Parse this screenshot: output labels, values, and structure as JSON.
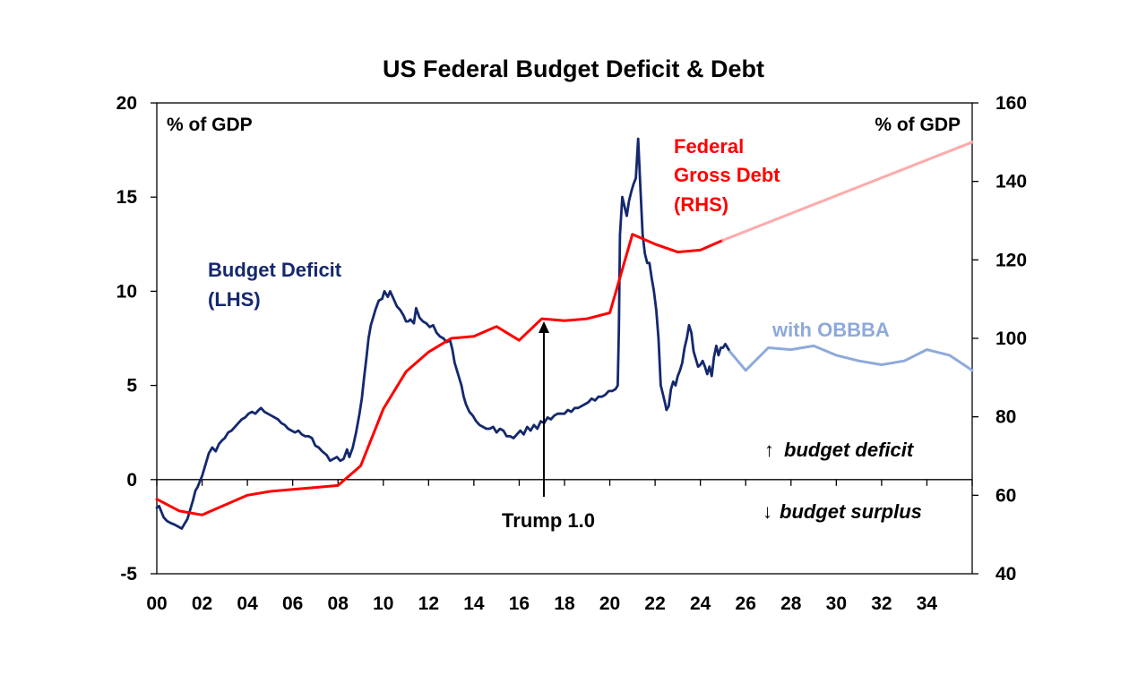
{
  "chart_data": {
    "type": "line",
    "title": "US Federal Budget Deficit & Debt",
    "y_left_label": "% of GDP",
    "y_right_label": "% of GDP",
    "y_left": {
      "min": -5,
      "max": 20,
      "ticks": [
        -5,
        0,
        5,
        10,
        15,
        20
      ]
    },
    "y_right": {
      "min": 40,
      "max": 160,
      "ticks": [
        40,
        60,
        80,
        100,
        120,
        140,
        160
      ]
    },
    "x": {
      "min": 0,
      "max": 36,
      "tick_values": [
        0,
        2,
        4,
        6,
        8,
        10,
        12,
        14,
        16,
        18,
        20,
        22,
        24,
        26,
        28,
        30,
        32,
        34
      ],
      "tick_labels": [
        "00",
        "02",
        "04",
        "06",
        "08",
        "10",
        "12",
        "14",
        "16",
        "18",
        "20",
        "22",
        "24",
        "26",
        "28",
        "30",
        "32",
        "34"
      ],
      "minor_ticks": [
        0,
        2,
        4,
        6,
        8,
        10,
        12,
        14,
        16,
        18,
        20,
        22,
        24,
        26,
        28,
        30,
        32,
        34,
        36
      ]
    },
    "series": [
      {
        "name": "Budget Deficit (LHS)",
        "axis": "left",
        "color": "#14286E",
        "points": [
          [
            0,
            -1.5
          ],
          [
            0.1,
            -1.4
          ],
          [
            0.2,
            -1.7
          ],
          [
            0.3,
            -2
          ],
          [
            0.45,
            -2.2
          ],
          [
            0.6,
            -2.3
          ],
          [
            0.8,
            -2.4
          ],
          [
            0.95,
            -2.5
          ],
          [
            1.1,
            -2.6
          ],
          [
            1.2,
            -2.4
          ],
          [
            1.35,
            -2.1
          ],
          [
            1.5,
            -1.5
          ],
          [
            1.6,
            -1.1
          ],
          [
            1.7,
            -0.6
          ],
          [
            1.8,
            -0.4
          ],
          [
            1.9,
            -0.1
          ],
          [
            2.0,
            0.2
          ],
          [
            2.1,
            0.6
          ],
          [
            2.2,
            1.0
          ],
          [
            2.3,
            1.4
          ],
          [
            2.45,
            1.7
          ],
          [
            2.6,
            1.5
          ],
          [
            2.75,
            1.9
          ],
          [
            2.9,
            2.1
          ],
          [
            3.0,
            2.2
          ],
          [
            3.15,
            2.5
          ],
          [
            3.3,
            2.6
          ],
          [
            3.45,
            2.8
          ],
          [
            3.6,
            3.0
          ],
          [
            3.75,
            3.2
          ],
          [
            3.9,
            3.3
          ],
          [
            4.05,
            3.5
          ],
          [
            4.2,
            3.6
          ],
          [
            4.35,
            3.5
          ],
          [
            4.5,
            3.7
          ],
          [
            4.6,
            3.8
          ],
          [
            4.75,
            3.6
          ],
          [
            4.9,
            3.5
          ],
          [
            5.05,
            3.4
          ],
          [
            5.2,
            3.3
          ],
          [
            5.35,
            3.2
          ],
          [
            5.5,
            3.0
          ],
          [
            5.65,
            2.9
          ],
          [
            5.8,
            2.7
          ],
          [
            5.95,
            2.6
          ],
          [
            6.1,
            2.5
          ],
          [
            6.25,
            2.6
          ],
          [
            6.4,
            2.4
          ],
          [
            6.55,
            2.3
          ],
          [
            6.7,
            2.3
          ],
          [
            6.85,
            2.2
          ],
          [
            7.0,
            1.8
          ],
          [
            7.15,
            1.7
          ],
          [
            7.3,
            1.5
          ],
          [
            7.5,
            1.3
          ],
          [
            7.65,
            1.0
          ],
          [
            7.8,
            1.1
          ],
          [
            7.95,
            1.2
          ],
          [
            8.1,
            1.0
          ],
          [
            8.25,
            1.1
          ],
          [
            8.4,
            1.6
          ],
          [
            8.5,
            1.2
          ],
          [
            8.65,
            1.7
          ],
          [
            8.8,
            2.5
          ],
          [
            8.95,
            3.5
          ],
          [
            9.05,
            4.3
          ],
          [
            9.15,
            5.4
          ],
          [
            9.25,
            6.4
          ],
          [
            9.35,
            7.5
          ],
          [
            9.45,
            8.2
          ],
          [
            9.55,
            8.6
          ],
          [
            9.65,
            9.0
          ],
          [
            9.8,
            9.5
          ],
          [
            9.95,
            9.6
          ],
          [
            10.05,
            10.0
          ],
          [
            10.2,
            9.7
          ],
          [
            10.3,
            10.0
          ],
          [
            10.45,
            9.6
          ],
          [
            10.6,
            9.2
          ],
          [
            10.75,
            9.0
          ],
          [
            10.9,
            8.7
          ],
          [
            11.0,
            8.4
          ],
          [
            11.1,
            8.4
          ],
          [
            11.2,
            8.5
          ],
          [
            11.35,
            8.3
          ],
          [
            11.45,
            9.1
          ],
          [
            11.6,
            8.6
          ],
          [
            11.75,
            8.4
          ],
          [
            11.9,
            8.3
          ],
          [
            12.05,
            8.1
          ],
          [
            12.2,
            8.2
          ],
          [
            12.35,
            7.8
          ],
          [
            12.5,
            7.6
          ],
          [
            12.65,
            7.5
          ],
          [
            12.8,
            7.3
          ],
          [
            12.95,
            7.4
          ],
          [
            13.05,
            6.9
          ],
          [
            13.15,
            6.2
          ],
          [
            13.3,
            5.6
          ],
          [
            13.45,
            5.0
          ],
          [
            13.55,
            4.4
          ],
          [
            13.65,
            4.0
          ],
          [
            13.8,
            3.6
          ],
          [
            13.95,
            3.4
          ],
          [
            14.1,
            3.1
          ],
          [
            14.25,
            2.9
          ],
          [
            14.4,
            2.8
          ],
          [
            14.55,
            2.7
          ],
          [
            14.7,
            2.7
          ],
          [
            14.85,
            2.8
          ],
          [
            15.0,
            2.5
          ],
          [
            15.15,
            2.7
          ],
          [
            15.3,
            2.6
          ],
          [
            15.45,
            2.3
          ],
          [
            15.6,
            2.3
          ],
          [
            15.75,
            2.2
          ],
          [
            15.9,
            2.4
          ],
          [
            16.05,
            2.6
          ],
          [
            16.2,
            2.4
          ],
          [
            16.35,
            2.8
          ],
          [
            16.5,
            2.6
          ],
          [
            16.65,
            2.9
          ],
          [
            16.8,
            2.7
          ],
          [
            16.95,
            3.1
          ],
          [
            17.1,
            3.0
          ],
          [
            17.25,
            3.3
          ],
          [
            17.4,
            3.2
          ],
          [
            17.55,
            3.4
          ],
          [
            17.7,
            3.5
          ],
          [
            17.85,
            3.5
          ],
          [
            18.0,
            3.5
          ],
          [
            18.15,
            3.7
          ],
          [
            18.3,
            3.6
          ],
          [
            18.45,
            3.8
          ],
          [
            18.6,
            3.8
          ],
          [
            18.75,
            3.9
          ],
          [
            18.9,
            4.0
          ],
          [
            19.05,
            4.1
          ],
          [
            19.2,
            4.3
          ],
          [
            19.35,
            4.2
          ],
          [
            19.5,
            4.4
          ],
          [
            19.65,
            4.4
          ],
          [
            19.8,
            4.5
          ],
          [
            19.95,
            4.7
          ],
          [
            20.1,
            4.7
          ],
          [
            20.25,
            4.8
          ],
          [
            20.35,
            5.0
          ],
          [
            20.4,
            8.0
          ],
          [
            20.45,
            13.0
          ],
          [
            20.55,
            15.0
          ],
          [
            20.65,
            14.5
          ],
          [
            20.75,
            14.0
          ],
          [
            20.85,
            14.8
          ],
          [
            20.95,
            15.3
          ],
          [
            21.05,
            15.7
          ],
          [
            21.15,
            16.0
          ],
          [
            21.25,
            18.1
          ],
          [
            21.35,
            15.5
          ],
          [
            21.45,
            13.0
          ],
          [
            21.55,
            12.0
          ],
          [
            21.65,
            11.5
          ],
          [
            21.75,
            11.5
          ],
          [
            21.85,
            10.7
          ],
          [
            21.95,
            10.0
          ],
          [
            22.05,
            9.0
          ],
          [
            22.15,
            7.5
          ],
          [
            22.25,
            5.0
          ],
          [
            22.35,
            4.5
          ],
          [
            22.45,
            4.0
          ],
          [
            22.5,
            3.7
          ],
          [
            22.6,
            3.9
          ],
          [
            22.7,
            4.8
          ],
          [
            22.8,
            5.2
          ],
          [
            22.9,
            5.0
          ],
          [
            23.0,
            5.5
          ],
          [
            23.1,
            5.8
          ],
          [
            23.2,
            6.2
          ],
          [
            23.3,
            7.0
          ],
          [
            23.4,
            7.5
          ],
          [
            23.5,
            8.2
          ],
          [
            23.6,
            7.8
          ],
          [
            23.7,
            6.8
          ],
          [
            23.8,
            6.4
          ],
          [
            23.9,
            6.0
          ],
          [
            24.0,
            6.1
          ],
          [
            24.1,
            6.3
          ],
          [
            24.2,
            6.0
          ],
          [
            24.3,
            5.6
          ],
          [
            24.4,
            6.0
          ],
          [
            24.5,
            5.5
          ],
          [
            24.6,
            6.5
          ],
          [
            24.7,
            7.1
          ],
          [
            24.8,
            6.6
          ],
          [
            24.9,
            7.0
          ],
          [
            25.0,
            7.0
          ],
          [
            25.1,
            7.2
          ],
          [
            25.2,
            7.0
          ],
          [
            25.3,
            6.8
          ]
        ]
      },
      {
        "name": "with OBBBA",
        "axis": "left",
        "color": "#8EA9DB",
        "points": [
          [
            25.3,
            6.8
          ],
          [
            26,
            5.8
          ],
          [
            27,
            7
          ],
          [
            28,
            6.9
          ],
          [
            29,
            7.1
          ],
          [
            30,
            6.6
          ],
          [
            31,
            6.3
          ],
          [
            32,
            6.1
          ],
          [
            33,
            6.3
          ],
          [
            34,
            6.9
          ],
          [
            35,
            6.6
          ],
          [
            36,
            5.8
          ]
        ]
      },
      {
        "name": "Federal Gross Debt (RHS)",
        "axis": "right",
        "color": "#FF0000",
        "points": [
          [
            0,
            59
          ],
          [
            1,
            56
          ],
          [
            2,
            55
          ],
          [
            3,
            57.5
          ],
          [
            4,
            60
          ],
          [
            5,
            61
          ],
          [
            6,
            61.5
          ],
          [
            7,
            62
          ],
          [
            8,
            62.5
          ],
          [
            9,
            67.5
          ],
          [
            10,
            82
          ],
          [
            11,
            91.5
          ],
          [
            12,
            96.5
          ],
          [
            13,
            100
          ],
          [
            14,
            100.5
          ],
          [
            15,
            103
          ],
          [
            16,
            99.5
          ],
          [
            17,
            105
          ],
          [
            18,
            104.5
          ],
          [
            19,
            105
          ],
          [
            20,
            106.5
          ],
          [
            21,
            126.5
          ],
          [
            22,
            124
          ],
          [
            23,
            122
          ],
          [
            24,
            122.5
          ],
          [
            25,
            125
          ]
        ]
      },
      {
        "name": "Federal Gross Debt projection",
        "axis": "right",
        "color": "#FFAAAA",
        "points": [
          [
            25,
            125
          ],
          [
            36,
            150
          ]
        ]
      }
    ],
    "labels": {
      "budget_deficit_line1": "Budget Deficit",
      "budget_deficit_line2": "(LHS)",
      "debt_line1": "Federal",
      "debt_line2": "Gross Debt",
      "debt_line3": "(RHS)",
      "obbba": "with OBBBA",
      "trump": "Trump 1.0",
      "deficit_note": "budget deficit",
      "surplus_note": "budget surplus",
      "up_arrow": "↑",
      "down_arrow": "↓"
    }
  }
}
